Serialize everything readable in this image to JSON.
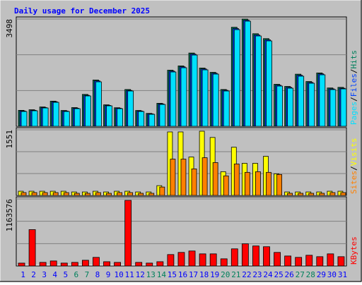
{
  "title": "Daily usage for December 2025",
  "categories": [
    "1",
    "2",
    "3",
    "4",
    "5",
    "6",
    "7",
    "8",
    "9",
    "10",
    "11",
    "12",
    "13",
    "14",
    "15",
    "16",
    "17",
    "18",
    "19",
    "20",
    "21",
    "22",
    "23",
    "24",
    "25",
    "26",
    "27",
    "28",
    "29",
    "30",
    "31"
  ],
  "weekend_indices": [
    5,
    6,
    12,
    13,
    19,
    20,
    26,
    27
  ],
  "weekend_color": "#00805c",
  "weekday_color": "#0000ff",
  "legend_separator": "/",
  "chart_data": [
    {
      "type": "bar",
      "ylim": [
        0,
        3498
      ],
      "yticks": [
        3498
      ],
      "grid": true,
      "series": [
        {
          "name": "Hits",
          "color": "#00805c",
          "values": [
            520,
            540,
            630,
            820,
            515,
            610,
            1040,
            1510,
            700,
            605,
            1200,
            515,
            420,
            750,
            1830,
            1970,
            2390,
            1900,
            1760,
            1200,
            3230,
            3498,
            3020,
            2860,
            1370,
            1300,
            1700,
            1460,
            1740,
            1250,
            1270
          ]
        },
        {
          "name": "Files",
          "color": "#0040ff",
          "values": [
            500,
            520,
            610,
            800,
            498,
            590,
            1010,
            1480,
            680,
            590,
            1170,
            498,
            405,
            730,
            1800,
            1940,
            2355,
            1870,
            1730,
            1175,
            3190,
            3460,
            2980,
            2820,
            1340,
            1270,
            1665,
            1430,
            1710,
            1220,
            1240
          ]
        },
        {
          "name": "Pages",
          "color": "#00e0ff",
          "values": [
            483,
            506,
            598,
            782,
            483,
            575,
            990,
            1450,
            667,
            575,
            1151,
            483,
            391,
            713,
            1772,
            1910,
            2324,
            1841,
            1703,
            1151,
            3153,
            3429,
            2946,
            2785,
            1312,
            1243,
            1634,
            1404,
            1680,
            1197,
            1220
          ]
        }
      ]
    },
    {
      "type": "bar",
      "ylim": [
        0,
        1551
      ],
      "yticks": [
        1551
      ],
      "grid": true,
      "series": [
        {
          "name": "Visits",
          "color": "#ffff00",
          "values": [
            99,
            99,
            99,
            99,
            99,
            82,
            82,
            99,
            82,
            99,
            99,
            82,
            82,
            231,
            1501,
            1501,
            907,
            1518,
            1370,
            561,
            1139,
            759,
            759,
            924,
            511,
            82,
            82,
            82,
            82,
            99,
            99
          ]
        },
        {
          "name": "Sites",
          "color": "#ff8000",
          "values": [
            66,
            66,
            66,
            66,
            66,
            50,
            50,
            66,
            50,
            66,
            66,
            50,
            50,
            198,
            858,
            858,
            627,
            891,
            776,
            462,
            743,
            545,
            561,
            545,
            495,
            50,
            50,
            50,
            50,
            66,
            66
          ]
        }
      ]
    },
    {
      "type": "bar",
      "ylim": [
        0,
        1163576
      ],
      "yticks": [
        1163576
      ],
      "grid": true,
      "series": [
        {
          "name": "KBytes",
          "color": "#ff0000",
          "values": [
            49500,
            631000,
            62000,
            87000,
            50000,
            62000,
            99000,
            149000,
            74000,
            62000,
            1138820,
            62000,
            50000,
            74000,
            198000,
            235000,
            260000,
            210000,
            210000,
            124000,
            297000,
            384000,
            347000,
            334000,
            235000,
            173000,
            149000,
            186000,
            161000,
            210000,
            161000
          ]
        }
      ]
    }
  ]
}
